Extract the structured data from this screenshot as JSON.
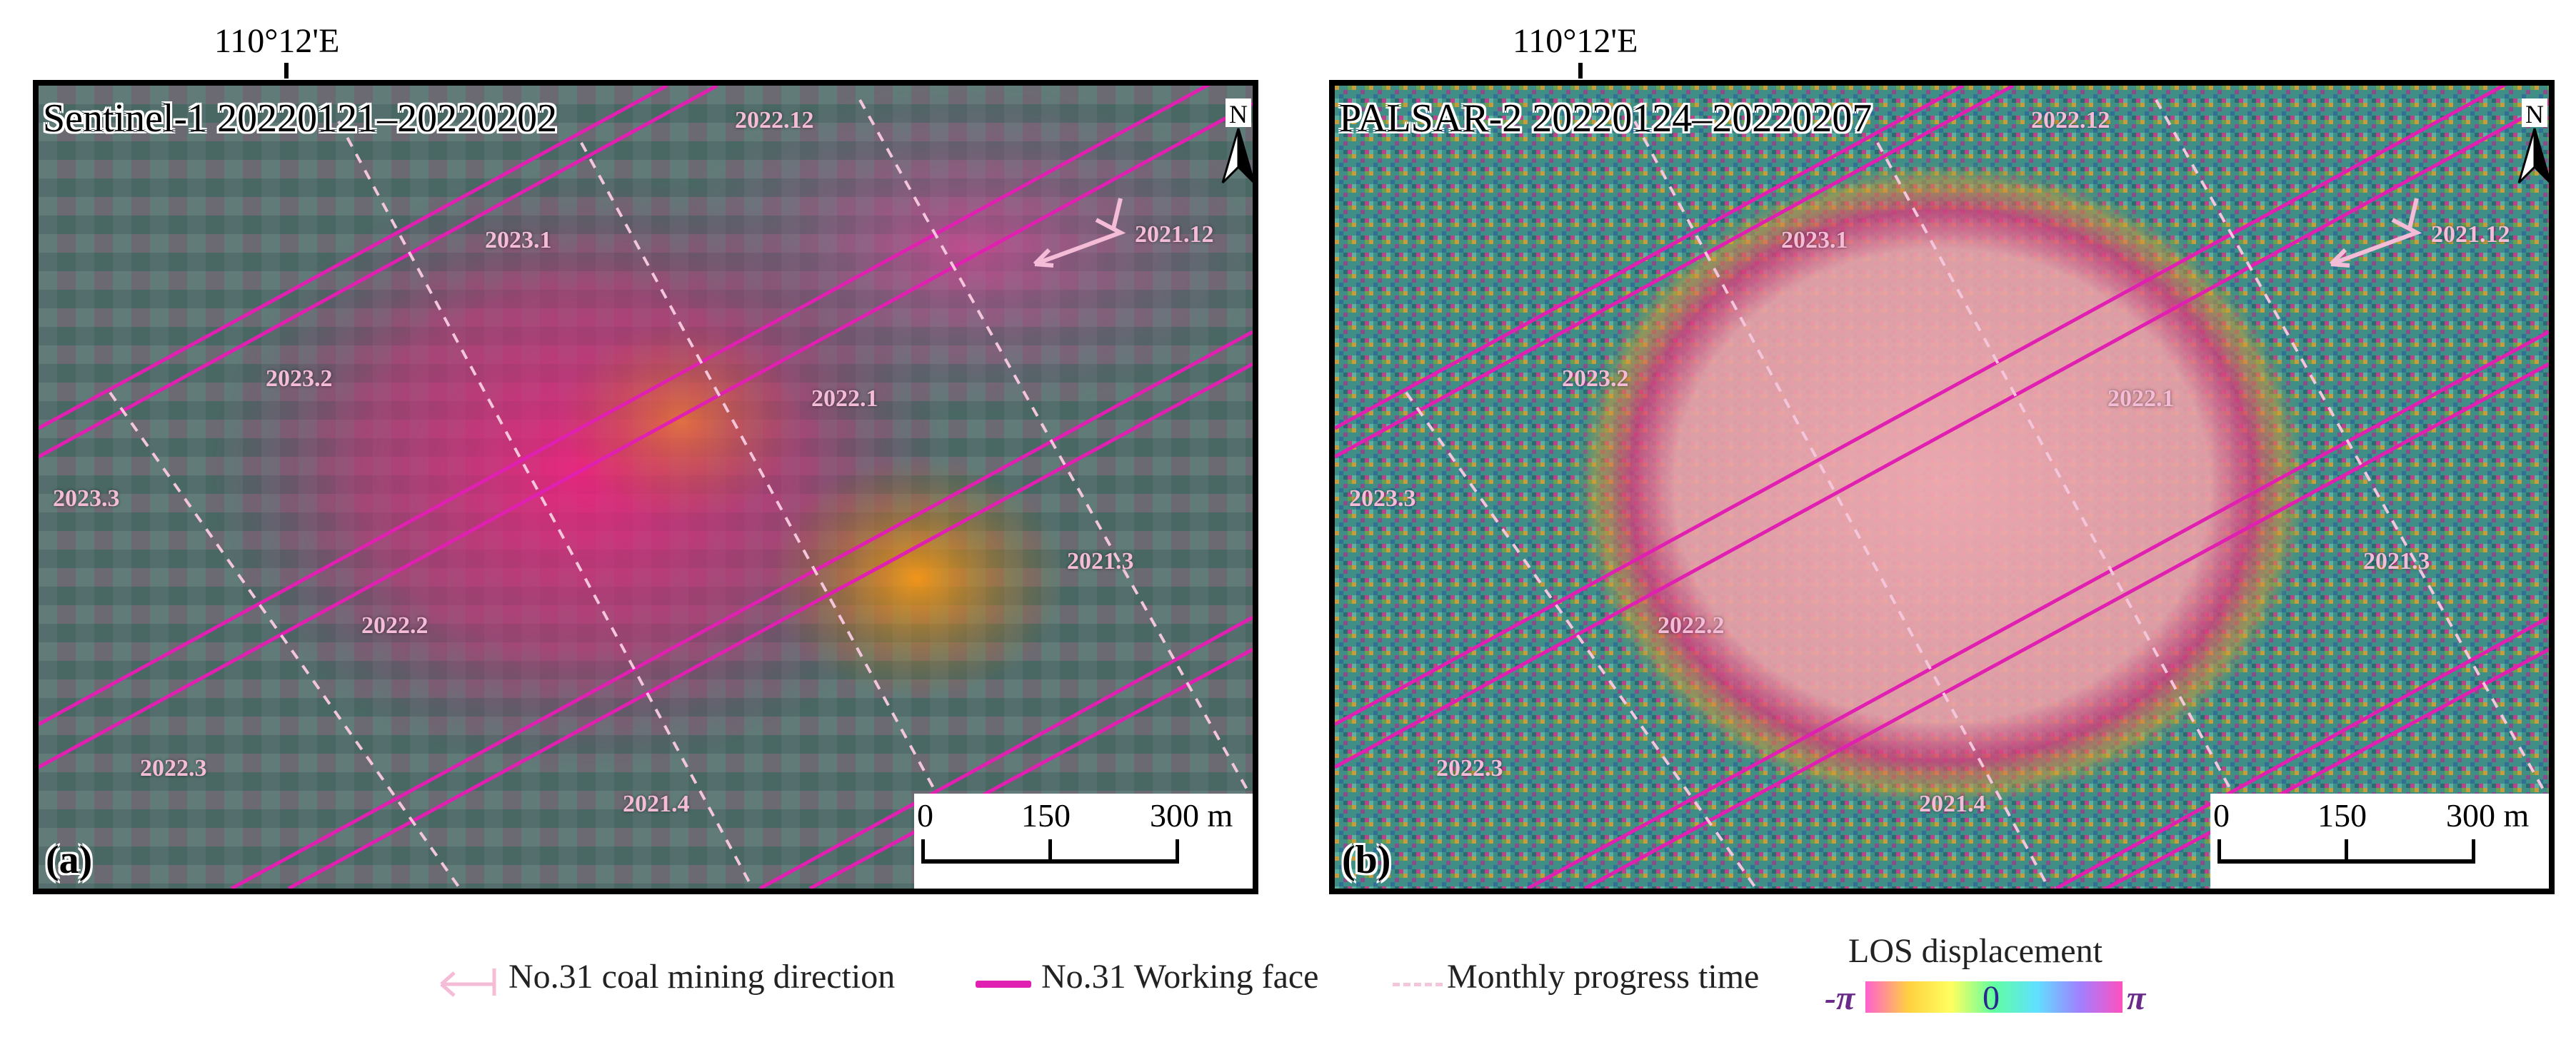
{
  "coordinate_label": "110°12'E",
  "panels": [
    {
      "id": "a",
      "title": "Sentinel-1 20220121–20220202",
      "letter": "(a)",
      "north": "N",
      "months": [
        "2022.12",
        "2023.1",
        "2021.12",
        "2023.2",
        "2022.1",
        "2023.3",
        "2021.3",
        "2022.2",
        "2022.3",
        "2021.4"
      ]
    },
    {
      "id": "b",
      "title": "PALSAR-2 20220124–20220207",
      "letter": "(b)",
      "north": "N",
      "months": [
        "2022.12",
        "2023.1",
        "2021.12",
        "2023.2",
        "2022.1",
        "2023.3",
        "2021.3",
        "2022.2",
        "2022.3",
        "2021.4"
      ]
    }
  ],
  "scalebar": {
    "labels": [
      "0",
      "150",
      "300 m"
    ]
  },
  "legend": {
    "direction": "No.31 coal mining direction",
    "working_face": "No.31 Working face",
    "progress": "Monthly progress time",
    "colorbar_title": "LOS displacement",
    "min": "-π",
    "mid": "0",
    "max": "π"
  },
  "colors": {
    "working_face": "#e020b0",
    "progress_line": "#f4c6dc",
    "direction_arrow": "#f4bcd6",
    "colorbar": [
      "#ff60d0",
      "#ffd040",
      "#ffff60",
      "#60ffa0",
      "#60e0ff",
      "#a080ff",
      "#ff50c0"
    ]
  }
}
